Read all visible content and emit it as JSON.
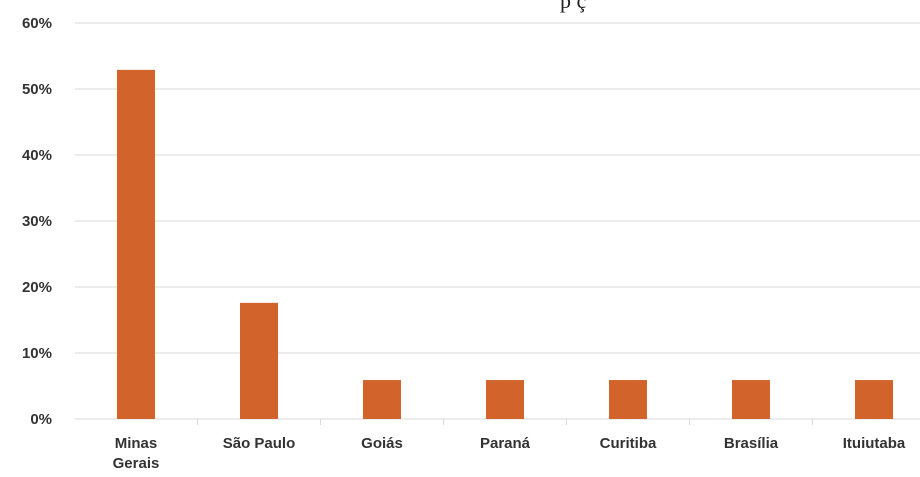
{
  "title_fragment": "p                       ç",
  "chart_data": {
    "type": "bar",
    "categories": [
      "Minas Gerais",
      "São Paulo",
      "Goiás",
      "Paraná",
      "Curitiba",
      "Brasília",
      "Ituiutaba"
    ],
    "category_lines": [
      [
        "Minas",
        "Gerais"
      ],
      [
        "São Paulo"
      ],
      [
        "Goiás"
      ],
      [
        "Paraná"
      ],
      [
        "Curitiba"
      ],
      [
        "Brasília"
      ],
      [
        "Ituiutaba"
      ]
    ],
    "values": [
      52.9,
      17.6,
      5.9,
      5.9,
      5.9,
      5.9,
      5.9
    ],
    "ylim": [
      0,
      60
    ],
    "yticks": [
      0,
      10,
      20,
      30,
      40,
      50,
      60
    ],
    "ytick_labels": [
      "0%",
      "10%",
      "20%",
      "30%",
      "40%",
      "50%",
      "60%"
    ],
    "grid": true,
    "bar_color": "#d2632b",
    "grid_color": "#d9d9d9"
  }
}
